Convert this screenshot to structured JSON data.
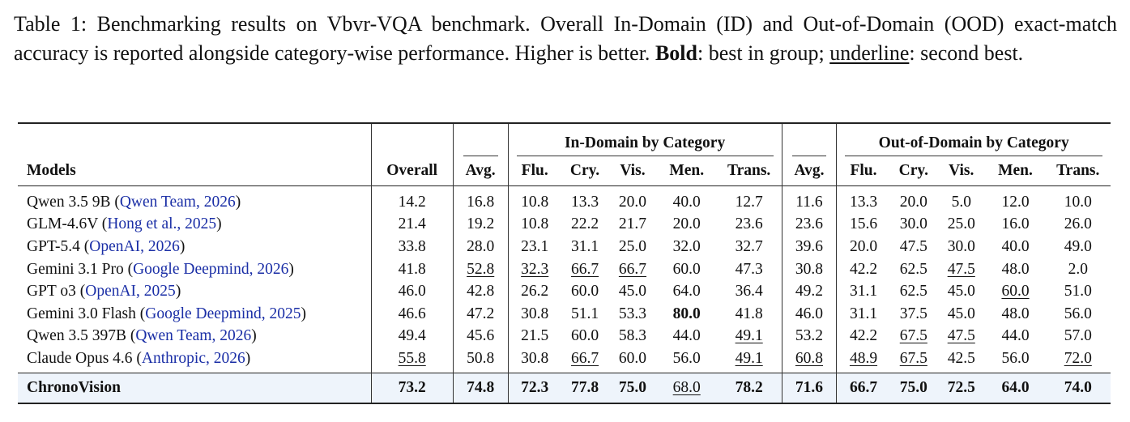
{
  "caption": {
    "prefix": "Table 1: Benchmarking results on Vbvr-VQA benchmark. Overall In-Domain (ID) and Out-of-Domain (OOD) exact-match accuracy is reported alongside category-wise performance. Higher is better. ",
    "bold_word": "Bold",
    "mid": ": best in group; ",
    "underline_word": "underline",
    "suffix": ": second best."
  },
  "header": {
    "models": "Models",
    "overall": "Overall",
    "id_group": "In-Domain by Category",
    "ood_group": "Out-of-Domain by Category",
    "cols": [
      "Avg.",
      "Flu.",
      "Cry.",
      "Vis.",
      "Men.",
      "Trans.",
      "Avg.",
      "Flu.",
      "Cry.",
      "Vis.",
      "Men.",
      "Trans."
    ]
  },
  "rows": [
    {
      "name": "Qwen 3.5 9B (",
      "cite": "Qwen Team, 2026",
      "close": ")",
      "vals": [
        "14.2",
        "16.8",
        "10.8",
        "13.3",
        "20.0",
        "40.0",
        "12.7",
        "11.6",
        "13.3",
        "20.0",
        "5.0",
        "12.0",
        "10.0"
      ],
      "marks": [
        "",
        "",
        "",
        "",
        "",
        "",
        "",
        "",
        "",
        "",
        "",
        "",
        ""
      ]
    },
    {
      "name": "GLM-4.6V (",
      "cite": "Hong et al., 2025",
      "close": ")",
      "vals": [
        "21.4",
        "19.2",
        "10.8",
        "22.2",
        "21.7",
        "20.0",
        "23.6",
        "23.6",
        "15.6",
        "30.0",
        "25.0",
        "16.0",
        "26.0"
      ],
      "marks": [
        "",
        "",
        "",
        "",
        "",
        "",
        "",
        "",
        "",
        "",
        "",
        "",
        ""
      ]
    },
    {
      "name": "GPT-5.4 (",
      "cite": "OpenAI, 2026",
      "close": ")",
      "vals": [
        "33.8",
        "28.0",
        "23.1",
        "31.1",
        "25.0",
        "32.0",
        "32.7",
        "39.6",
        "20.0",
        "47.5",
        "30.0",
        "40.0",
        "49.0"
      ],
      "marks": [
        "",
        "",
        "",
        "",
        "",
        "",
        "",
        "",
        "",
        "",
        "",
        "",
        ""
      ]
    },
    {
      "name": "Gemini 3.1 Pro (",
      "cite": "Google Deepmind, 2026",
      "close": ")",
      "vals": [
        "41.8",
        "52.8",
        "32.3",
        "66.7",
        "66.7",
        "60.0",
        "47.3",
        "30.8",
        "42.2",
        "62.5",
        "47.5",
        "48.0",
        "2.0"
      ],
      "marks": [
        "",
        "u",
        "u",
        "u",
        "u",
        "",
        "",
        "",
        "",
        "",
        "u",
        "",
        ""
      ]
    },
    {
      "name": "GPT o3 (",
      "cite": "OpenAI, 2025",
      "close": ")",
      "vals": [
        "46.0",
        "42.8",
        "26.2",
        "60.0",
        "45.0",
        "64.0",
        "36.4",
        "49.2",
        "31.1",
        "62.5",
        "45.0",
        "60.0",
        "51.0"
      ],
      "marks": [
        "",
        "",
        "",
        "",
        "",
        "",
        "",
        "",
        "",
        "",
        "",
        "u",
        ""
      ]
    },
    {
      "name": "Gemini 3.0 Flash (",
      "cite": "Google Deepmind, 2025",
      "close": ")",
      "vals": [
        "46.6",
        "47.2",
        "30.8",
        "51.1",
        "53.3",
        "80.0",
        "41.8",
        "46.0",
        "31.1",
        "37.5",
        "45.0",
        "48.0",
        "56.0"
      ],
      "marks": [
        "",
        "",
        "",
        "",
        "",
        "b",
        "",
        "",
        "",
        "",
        "",
        "",
        ""
      ]
    },
    {
      "name": "Qwen 3.5 397B (",
      "cite": "Qwen Team, 2026",
      "close": ")",
      "vals": [
        "49.4",
        "45.6",
        "21.5",
        "60.0",
        "58.3",
        "44.0",
        "49.1",
        "53.2",
        "42.2",
        "67.5",
        "47.5",
        "44.0",
        "57.0"
      ],
      "marks": [
        "",
        "",
        "",
        "",
        "",
        "",
        "u",
        "",
        "",
        "u",
        "u",
        "",
        ""
      ]
    },
    {
      "name": "Claude Opus 4.6 (",
      "cite": "Anthropic, 2026",
      "close": ")",
      "vals": [
        "55.8",
        "50.8",
        "30.8",
        "66.7",
        "60.0",
        "56.0",
        "49.1",
        "60.8",
        "48.9",
        "67.5",
        "42.5",
        "56.0",
        "72.0"
      ],
      "marks": [
        "u",
        "",
        "",
        "u",
        "",
        "",
        "u",
        "u",
        "u",
        "u",
        "",
        "",
        "u"
      ]
    }
  ],
  "ours": {
    "name": "ChronoVision",
    "vals": [
      "73.2",
      "74.8",
      "72.3",
      "77.8",
      "75.0",
      "68.0",
      "78.2",
      "71.6",
      "66.7",
      "75.0",
      "72.5",
      "64.0",
      "74.0"
    ],
    "marks": [
      "b",
      "b",
      "b",
      "b",
      "b",
      "u",
      "b",
      "b",
      "b",
      "b",
      "b",
      "b",
      "b"
    ]
  },
  "colors": {
    "citation": "#1a2ea6",
    "highlight_row": "#eef4fb"
  }
}
